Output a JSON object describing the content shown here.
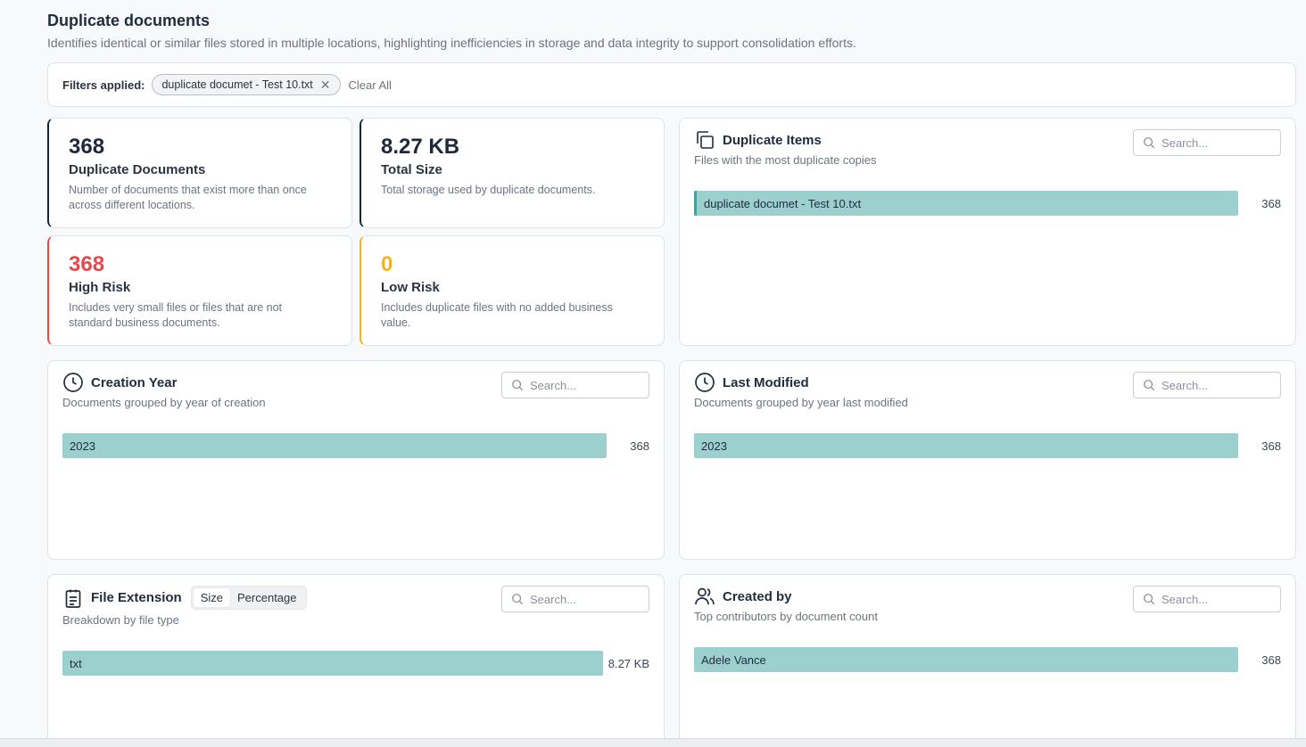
{
  "header": {
    "title": "Duplicate documents",
    "subtitle": "Identifies identical or similar files stored in multiple locations, highlighting inefficiencies in storage and data integrity to support consolidation efforts."
  },
  "filters": {
    "label": "Filters applied:",
    "chips": [
      {
        "label": "duplicate documet - Test 10.txt"
      }
    ],
    "clear_label": "Clear All"
  },
  "stats": [
    {
      "value": "368",
      "label": "Duplicate Documents",
      "desc": "Number of documents that exist more than once across different locations."
    },
    {
      "value": "8.27 KB",
      "label": "Total Size",
      "desc": "Total storage used by duplicate documents."
    },
    {
      "value": "368",
      "label": "High Risk",
      "desc": "Includes very small files or files that are not standard business documents."
    },
    {
      "value": "0",
      "label": "Low Risk",
      "desc": "Includes duplicate files with no added business value."
    }
  ],
  "panels": {
    "duplicate_items": {
      "title": "Duplicate Items",
      "subtitle": "Files with the most duplicate copies",
      "search_placeholder": "Search...",
      "rows": [
        {
          "label": "duplicate documet - Test 10.txt",
          "value": "368",
          "fraction": 1.0
        }
      ]
    },
    "creation_year": {
      "title": "Creation Year",
      "subtitle": "Documents grouped by year of creation",
      "search_placeholder": "Search...",
      "rows": [
        {
          "label": "2023",
          "value": "368",
          "fraction": 1.0
        }
      ]
    },
    "last_modified": {
      "title": "Last Modified",
      "subtitle": "Documents grouped by year last modified",
      "search_placeholder": "Search...",
      "rows": [
        {
          "label": "2023",
          "value": "368",
          "fraction": 1.0
        }
      ]
    },
    "file_extension": {
      "title": "File Extension",
      "subtitle": "Breakdown by file type",
      "search_placeholder": "Search...",
      "toggle": [
        "Size",
        "Percentage"
      ],
      "toggle_active": "Size",
      "rows": [
        {
          "label": "txt",
          "value": "8.27 KB",
          "fraction": 1.0
        }
      ]
    },
    "created_by": {
      "title": "Created by",
      "subtitle": "Top contributors by document count",
      "search_placeholder": "Search...",
      "rows": [
        {
          "label": "Adele Vance",
          "value": "368",
          "fraction": 1.0
        }
      ]
    }
  },
  "colors": {
    "bar": "#9bd0cf",
    "high_risk": "#e5484d",
    "low_risk": "#f0b429",
    "dark_accent": "#12263a"
  },
  "icons": {
    "duplicate_items": "copy-icon",
    "creation_year": "clock-icon",
    "last_modified": "clock-icon",
    "file_extension": "clipboard-icon",
    "created_by": "users-icon"
  }
}
